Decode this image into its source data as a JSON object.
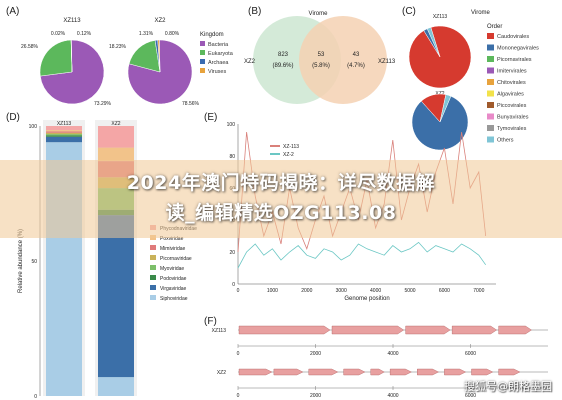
{
  "panels": {
    "A": "(A)",
    "B": "(B)",
    "C": "(C)",
    "D": "(D)",
    "E": "(E)",
    "F": "(F)"
  },
  "headline": {
    "line1": "2024年澳门特码揭晓：详尽数据解",
    "line2": "读_编辑精选OZG113.08"
  },
  "watermark": "搜狐号@朗格墨园",
  "colors": {
    "bacteria": "#9b59b6",
    "eukaryota": "#5cb85c",
    "archaea": "#3a6bb0",
    "viruses": "#e8a33d",
    "venn_left": "#cfe8d4",
    "venn_right": "#f5d1b3",
    "xz113_line": "#d9807a",
    "xz2_line": "#6bc7c4",
    "red_order": "#d63a2f",
    "blue_order": "#3b6fa8",
    "gene_arrow": "#e8a0a0"
  },
  "chart_data": [
    {
      "type": "pie",
      "panel": "A",
      "legend_title": "Kingdom",
      "legend": [
        "Bacteria",
        "Eukaryota",
        "Archaea",
        "Viruses"
      ],
      "charts": [
        {
          "name": "XZ113",
          "slices": [
            {
              "label": "Bacteria",
              "value": 73.29,
              "text": "73.29%"
            },
            {
              "label": "Eukaryota",
              "value": 26.58,
              "text": "26.58%"
            },
            {
              "label": "Archaea",
              "value": 0.02,
              "text": "0.02%"
            },
            {
              "label": "Viruses",
              "value": 0.12,
              "text": "0.12%"
            }
          ]
        },
        {
          "name": "XZ2",
          "slices": [
            {
              "label": "Bacteria",
              "value": 78.56,
              "text": "78.56%"
            },
            {
              "label": "Eukaryota",
              "value": 18.23,
              "text": "18.23%"
            },
            {
              "label": "Archaea",
              "value": 1.31,
              "text": "1.31%"
            },
            {
              "label": "Viruses",
              "value": 0.8,
              "text": "0.80%"
            }
          ]
        }
      ]
    },
    {
      "type": "venn",
      "panel": "B",
      "title": "Virome",
      "sets": [
        "XZ2",
        "XZ113"
      ],
      "regions": [
        {
          "label": "XZ2 only",
          "count": "823",
          "pct": "(89.6%)"
        },
        {
          "label": "shared",
          "count": "53",
          "pct": "(5.8%)"
        },
        {
          "label": "XZ113 only",
          "count": "43",
          "pct": "(4.7%)"
        }
      ]
    },
    {
      "type": "pie",
      "panel": "C",
      "title": "Virome",
      "legend_title": "Order",
      "legend": [
        "Caudovirales",
        "Mononegavirales",
        "Picornavirales",
        "Imitervirales",
        "Chitovirales",
        "Algavirales",
        "Piccovirales",
        "Bunyavirales",
        "Tymovirales",
        "Others"
      ],
      "legend_colors": [
        "#d63a2f",
        "#3b6fa8",
        "#5cb85c",
        "#9b59b6",
        "#e8a33d",
        "#f2e24a",
        "#a05a2c",
        "#e88ac8",
        "#999999",
        "#7fc5d6"
      ],
      "charts": [
        {
          "name": "XZ113",
          "slices": [
            {
              "label": "Caudovirales",
              "value": 96
            },
            {
              "label": "Mononegavirales",
              "value": 2
            },
            {
              "label": "Others",
              "value": 2
            }
          ]
        },
        {
          "name": "XZ2",
          "slices": [
            {
              "label": "Mononegavirales",
              "value": 82
            },
            {
              "label": "Caudovirales",
              "value": 15
            },
            {
              "label": "Others",
              "value": 3
            }
          ]
        }
      ]
    },
    {
      "type": "bar",
      "panel": "D",
      "stacked": true,
      "categories": [
        "XZ113",
        "XZ2"
      ],
      "ylabel": "Relative abundance (%)",
      "ylim": [
        0,
        100
      ],
      "yticks": [
        "0",
        "50",
        "100"
      ],
      "legend": [
        "Phycodnaviridae",
        "Poxviridae",
        "Mimiviridae",
        "Picornaviridae",
        "Myoviridae",
        "Podoviridae",
        "Virgaviridae",
        "Siphoviridae"
      ],
      "legend_colors": [
        "#f4a6a6",
        "#f2c38a",
        "#e07a7a",
        "#c9b25a",
        "#7cbf6a",
        "#3a8a4a",
        "#3b6fa8",
        "#a9cde6"
      ],
      "series": [
        {
          "name": "Siphoviridae",
          "values": [
            94,
            7
          ]
        },
        {
          "name": "Virgaviridae",
          "values": [
            2,
            60
          ]
        },
        {
          "name": "Podoviridae",
          "values": [
            0.5,
            2
          ]
        },
        {
          "name": "Myoviridae",
          "values": [
            0.5,
            8
          ]
        },
        {
          "name": "Picornaviridae",
          "values": [
            0.5,
            4
          ]
        },
        {
          "name": "Mimiviridae",
          "values": [
            0.5,
            6
          ]
        },
        {
          "name": "Poxviridae",
          "values": [
            0.5,
            5
          ]
        },
        {
          "name": "Phycodnaviridae",
          "values": [
            1.5,
            8
          ]
        }
      ]
    },
    {
      "type": "line",
      "panel": "E",
      "xlabel": "Genome position",
      "ylabel": "",
      "xlim": [
        0,
        7500
      ],
      "xticks": [
        "0",
        "1000",
        "2000",
        "3000",
        "4000",
        "5000",
        "6000",
        "7000"
      ],
      "ylim": [
        0,
        100
      ],
      "yticks": [
        "0",
        "20",
        "40",
        "60",
        "80",
        "100"
      ],
      "series": [
        {
          "name": "XZ-113",
          "x": [
            0,
            250,
            500,
            750,
            1000,
            1250,
            1500,
            1750,
            2000,
            2250,
            2500,
            2750,
            3000,
            3250,
            3500,
            3750,
            4000,
            4250,
            4500,
            4750,
            5000,
            5250,
            5500,
            5750,
            6000,
            6250,
            6500,
            6750,
            7000,
            7200
          ],
          "values": [
            20,
            95,
            55,
            30,
            45,
            25,
            60,
            35,
            22,
            40,
            55,
            30,
            45,
            60,
            40,
            65,
            35,
            50,
            90,
            40,
            60,
            75,
            45,
            70,
            85,
            50,
            95,
            60,
            70,
            30
          ]
        },
        {
          "name": "XZ-2",
          "x": [
            0,
            250,
            500,
            750,
            1000,
            1250,
            1500,
            1750,
            2000,
            2250,
            2500,
            2750,
            3000,
            3250,
            3500,
            3750,
            4000,
            4250,
            4500,
            4750,
            5000,
            5250,
            5500,
            5750,
            6000,
            6250,
            6500,
            6750,
            7000,
            7200
          ],
          "values": [
            10,
            20,
            25,
            18,
            22,
            15,
            20,
            24,
            18,
            16,
            22,
            20,
            15,
            18,
            25,
            22,
            20,
            18,
            24,
            20,
            22,
            26,
            20,
            24,
            22,
            20,
            25,
            22,
            18,
            12
          ]
        }
      ]
    },
    {
      "type": "genome_map",
      "panel": "F",
      "xlim": [
        0,
        8000
      ],
      "xticks": [
        "0",
        "2000",
        "4000",
        "6000"
      ],
      "tracks": [
        {
          "name": "XZ113",
          "genes": [
            [
              0,
              2400
            ],
            [
              2400,
              4300
            ],
            [
              4300,
              5500
            ],
            [
              5500,
              6700
            ],
            [
              6700,
              7600
            ]
          ]
        },
        {
          "name": "XZ2",
          "genes": [
            [
              0,
              900
            ],
            [
              900,
              1700
            ],
            [
              1800,
              2600
            ],
            [
              2700,
              3300
            ],
            [
              3400,
              3800
            ],
            [
              3900,
              4500
            ],
            [
              4600,
              5200
            ],
            [
              5300,
              5900
            ],
            [
              6000,
              6600
            ],
            [
              6700,
              7300
            ]
          ]
        }
      ]
    }
  ]
}
